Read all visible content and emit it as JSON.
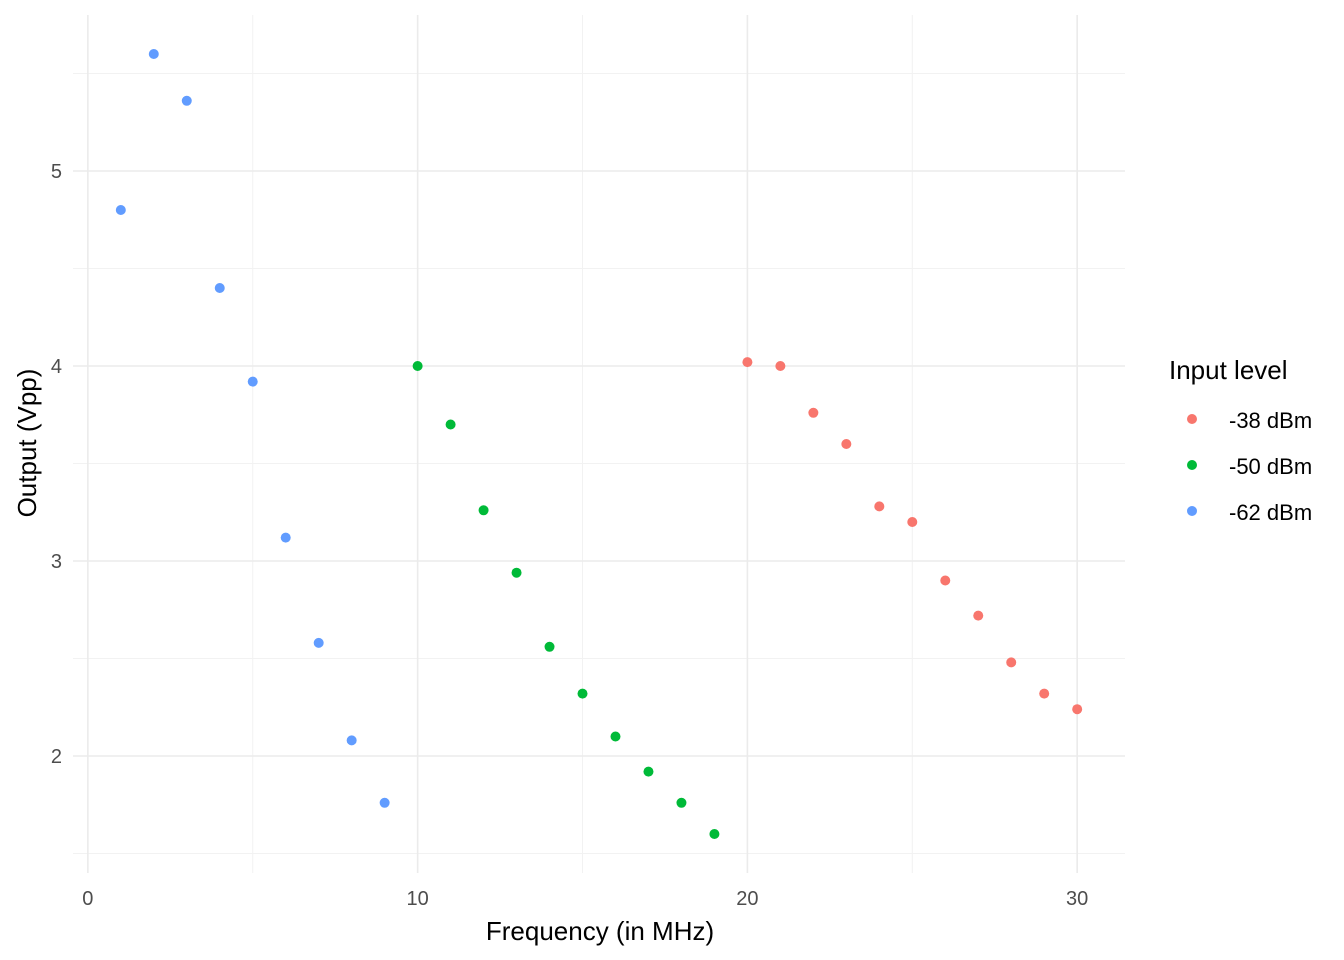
{
  "chart_data": {
    "type": "scatter",
    "title": "",
    "xlabel": "Frequency (in MHz)",
    "ylabel": "Output (Vpp)",
    "xlim": [
      -0.45,
      31.45
    ],
    "ylim": [
      1.4,
      5.8
    ],
    "x_ticks": [
      0,
      10,
      20,
      30
    ],
    "x_tick_labels": [
      "0",
      "10",
      "20",
      "30"
    ],
    "y_ticks": [
      2,
      3,
      4,
      5
    ],
    "y_tick_labels": [
      "2",
      "3",
      "4",
      "5"
    ],
    "grid": true,
    "legend": {
      "title": "Input level",
      "placement": "right"
    },
    "series": [
      {
        "name": "-38 dBm",
        "color": "#F8766D",
        "x": [
          20,
          21,
          22,
          23,
          24,
          25,
          26,
          27,
          28,
          29,
          30
        ],
        "y": [
          4.02,
          4.0,
          3.76,
          3.6,
          3.28,
          3.2,
          2.9,
          2.72,
          2.48,
          2.32,
          2.24
        ]
      },
      {
        "name": "-50 dBm",
        "color": "#00BA38",
        "x": [
          10,
          11,
          12,
          13,
          14,
          15,
          16,
          17,
          18,
          19
        ],
        "y": [
          4.0,
          3.7,
          3.26,
          2.94,
          2.56,
          2.32,
          2.1,
          1.92,
          1.76,
          1.6
        ]
      },
      {
        "name": "-62 dBm",
        "color": "#619CFF",
        "x": [
          1,
          2,
          3,
          4,
          5,
          6,
          7,
          8,
          9
        ],
        "y": [
          4.8,
          5.6,
          5.36,
          4.4,
          3.92,
          3.12,
          2.58,
          2.08,
          1.76
        ]
      }
    ]
  }
}
